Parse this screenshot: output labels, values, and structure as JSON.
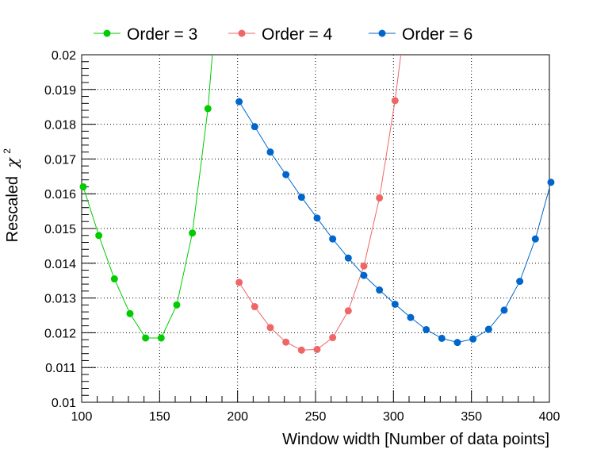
{
  "chart_data": {
    "type": "line",
    "title": "",
    "xlabel": "Window width [Number of data points]",
    "ylabel": "Rescaled",
    "ylabel_symbol": "χ",
    "ylabel_superscript": "2",
    "xlim": [
      100,
      400
    ],
    "ylim": [
      0.01,
      0.02
    ],
    "xticks": [
      100,
      150,
      200,
      250,
      300,
      350,
      400
    ],
    "xtick_labels": [
      "100",
      "150",
      "200",
      "250",
      "300",
      "350",
      "400"
    ],
    "yticks": [
      0.01,
      0.011,
      0.012,
      0.013,
      0.014,
      0.015,
      0.016,
      0.017,
      0.018,
      0.019,
      0.02
    ],
    "ytick_labels": [
      "0.01",
      "0.011",
      "0.012",
      "0.013",
      "0.014",
      "0.015",
      "0.016",
      "0.017",
      "0.018",
      "0.019",
      "0.02"
    ],
    "grid": true,
    "legend_position": "top",
    "series": [
      {
        "name": "Order = 3",
        "color": "#00cc00",
        "x": [
          101,
          111,
          121,
          131,
          141,
          151,
          161,
          171,
          181
        ],
        "y": [
          0.0162,
          0.0148,
          0.01355,
          0.01255,
          0.01185,
          0.01185,
          0.0128,
          0.01487,
          0.01845
        ],
        "line_extends_to": [
          184,
          0.0201
        ]
      },
      {
        "name": "Order = 4",
        "color": "#ee6666",
        "x": [
          201,
          211,
          221,
          231,
          241,
          251,
          261,
          271,
          281,
          291,
          301
        ],
        "y": [
          0.01345,
          0.01275,
          0.01215,
          0.01173,
          0.0115,
          0.01152,
          0.01186,
          0.01263,
          0.01392,
          0.01588,
          0.01868
        ],
        "line_extends_to": [
          305,
          0.0201
        ]
      },
      {
        "name": "Order = 6",
        "color": "#0066cc",
        "x": [
          201,
          211,
          221,
          231,
          241,
          251,
          261,
          271,
          281,
          291,
          301,
          311,
          321,
          331,
          341,
          351,
          361,
          371,
          381,
          391,
          401
        ],
        "y": [
          0.01865,
          0.01793,
          0.0172,
          0.01655,
          0.0159,
          0.0153,
          0.0147,
          0.01415,
          0.01365,
          0.01323,
          0.01282,
          0.01244,
          0.01209,
          0.01184,
          0.01172,
          0.01182,
          0.0121,
          0.01265,
          0.01348,
          0.0147,
          0.01633
        ]
      }
    ]
  }
}
